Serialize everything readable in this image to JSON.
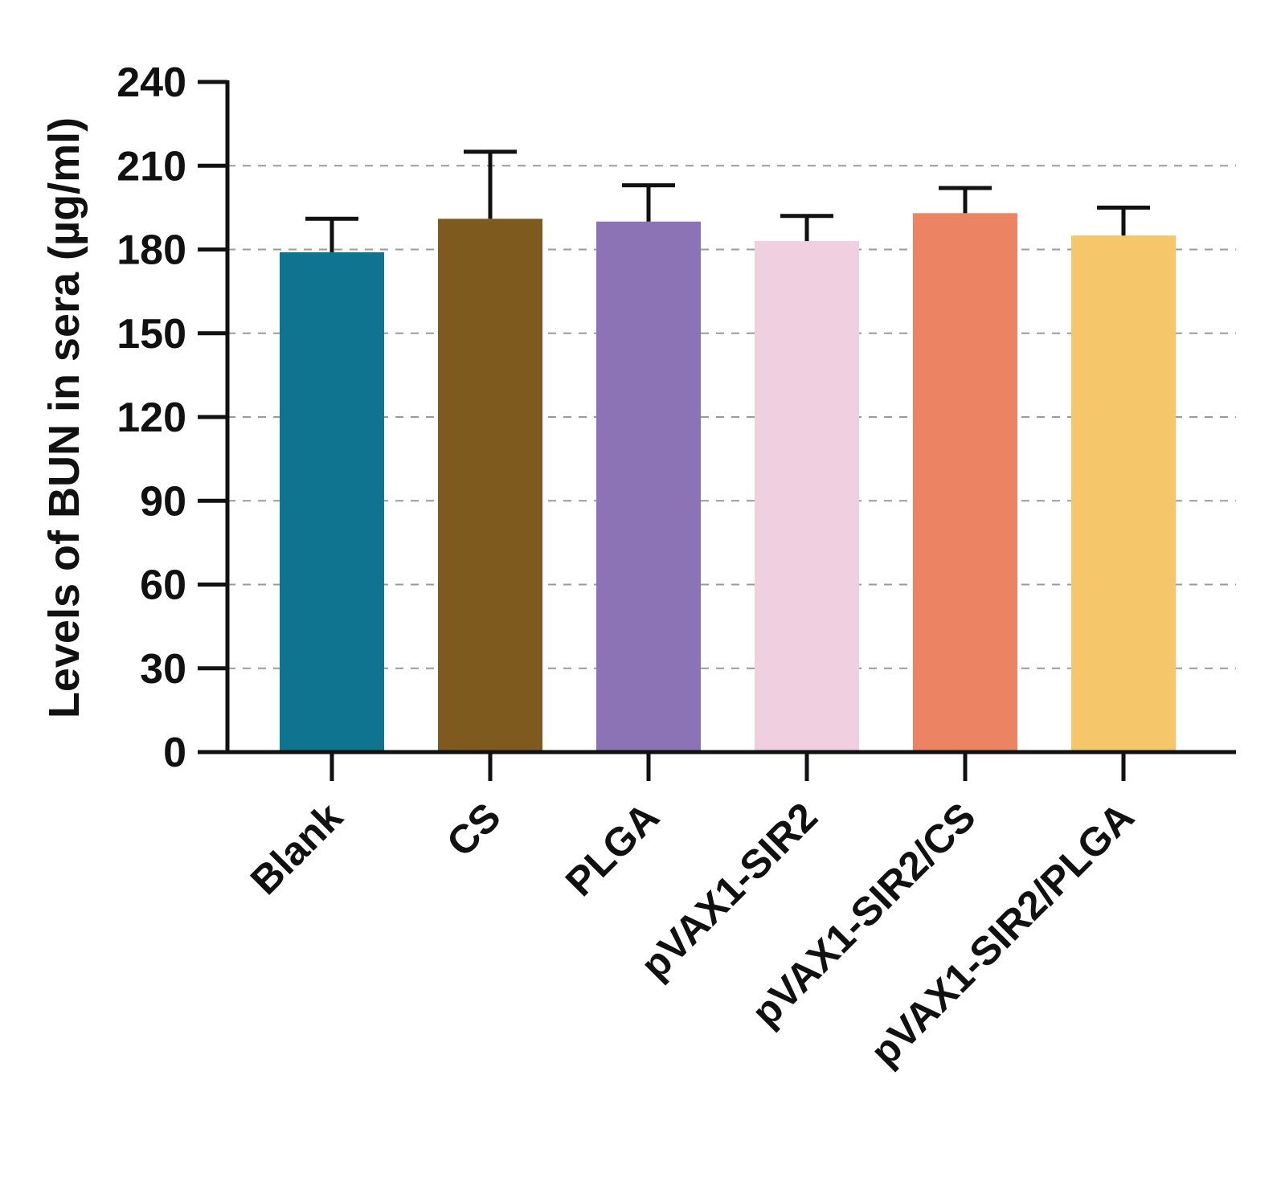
{
  "chart_data": {
    "type": "bar",
    "title": "",
    "xlabel": "",
    "ylabel": "Levels of BUN in sera (µg/ml)",
    "ylim": [
      0,
      240
    ],
    "yticks": [
      0,
      30,
      60,
      90,
      120,
      150,
      180,
      210,
      240
    ],
    "grid": true,
    "categories": [
      "Blank",
      "CS",
      "PLGA",
      "pVAX1-SIR2",
      "pVAX1-SIR2/CS",
      "pVAX1-SIR2/PLGA"
    ],
    "values": [
      179,
      191,
      190,
      183,
      193,
      185
    ],
    "errors": [
      12,
      24,
      13,
      9,
      9,
      10
    ],
    "colors": [
      "#0e7490",
      "#7f5a1f",
      "#8b73b5",
      "#f0cfe0",
      "#ec8464",
      "#f5c66a"
    ]
  }
}
